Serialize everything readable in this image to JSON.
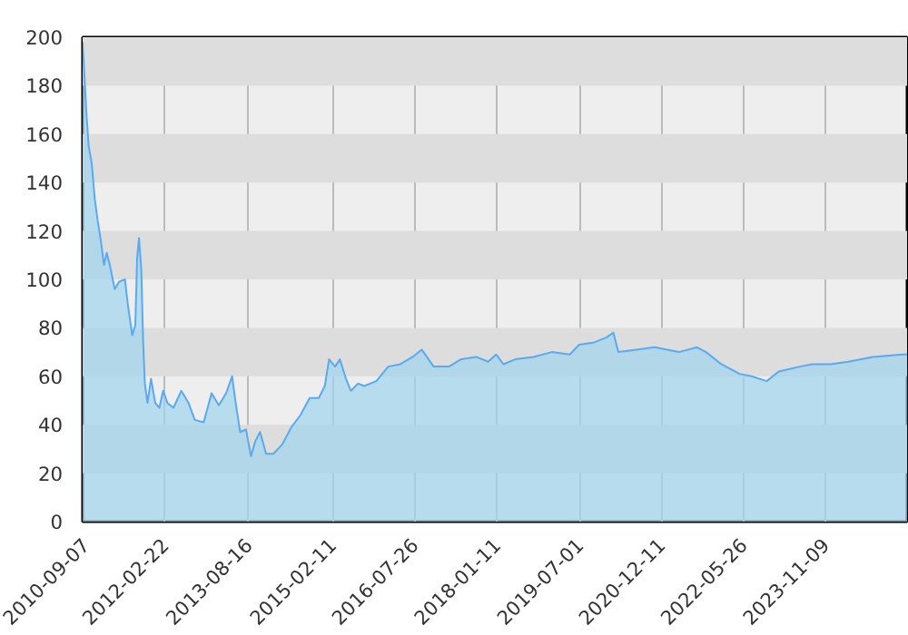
{
  "chart_data": {
    "type": "area",
    "x": [
      "2010-09-07",
      "2010-10-04",
      "2010-10-16",
      "2010-11-05",
      "2010-11-25",
      "2010-12-14",
      "2011-01-03",
      "2011-01-23",
      "2011-02-10",
      "2011-03-02",
      "2011-04-03",
      "2011-04-30",
      "2011-06-08",
      "2011-06-28",
      "2011-07-25",
      "2011-08-14",
      "2011-08-26",
      "2011-09-07",
      "2011-09-22",
      "2011-10-04",
      "2011-10-15",
      "2011-11-01",
      "2011-11-24",
      "2011-12-21",
      "2012-01-17",
      "2012-02-10",
      "2012-03-09",
      "2012-04-17",
      "2012-06-07",
      "2012-07-24",
      "2012-09-02",
      "2012-10-30",
      "2012-12-20",
      "2013-02-05",
      "2013-03-24",
      "2013-05-02",
      "2013-05-25",
      "2013-06-23",
      "2013-07-31",
      "2013-09-01",
      "2013-09-28",
      "2013-10-30",
      "2013-12-08",
      "2014-01-24",
      "2014-03-24",
      "2014-05-21",
      "2014-07-19",
      "2014-09-16",
      "2014-11-14",
      "2014-12-23",
      "2015-01-20",
      "2015-02-28",
      "2015-03-31",
      "2015-05-09",
      "2015-06-10",
      "2015-07-27",
      "2015-09-04",
      "2015-11-22",
      "2016-02-07",
      "2016-04-26",
      "2016-07-14",
      "2016-09-11",
      "2016-11-27",
      "2017-03-06",
      "2017-05-23",
      "2017-08-29",
      "2017-11-15",
      "2018-01-06",
      "2018-02-22",
      "2018-05-10",
      "2018-09-05",
      "2019-01-01",
      "2019-04-28",
      "2019-06-26",
      "2019-10-03",
      "2019-12-19",
      "2020-02-04",
      "2020-03-07",
      "2020-07-03",
      "2020-10-28",
      "2021-04-03",
      "2021-07-29",
      "2021-09-26",
      "2022-01-03",
      "2022-05-01",
      "2022-07-17",
      "2022-10-24",
      "2023-01-10",
      "2023-05-27",
      "2023-08-14",
      "2023-12-10",
      "2024-04-05",
      "2024-09-09",
      "2025-03-24",
      "2025-04-20"
    ],
    "series": [
      {
        "color": "#5aa9f2",
        "values": [
          198,
          166,
          155,
          148,
          133,
          124,
          116,
          106,
          111,
          106,
          96,
          99,
          100,
          89,
          77,
          81,
          109,
          117,
          104,
          74,
          57,
          49,
          59,
          49,
          47,
          54,
          49,
          47,
          54,
          49,
          42,
          41,
          53,
          48,
          53,
          60,
          49,
          37,
          38,
          27,
          33,
          37,
          28,
          28,
          32,
          39,
          44,
          51,
          51,
          56,
          67,
          64,
          67,
          59,
          54,
          57,
          56,
          58,
          64,
          65,
          68,
          71,
          64,
          64,
          67,
          68,
          66,
          69,
          65,
          67,
          68,
          70,
          69,
          73,
          74,
          76,
          78,
          70,
          71,
          72,
          70,
          72,
          70,
          65,
          61,
          60,
          58,
          62,
          64,
          65,
          65,
          66,
          68,
          69,
          69
        ]
      }
    ],
    "xlim": [
      "2010-09-07",
      "2025-04-20"
    ],
    "xticks": [
      "2010-09-07",
      "2012-02-22",
      "2013-08-16",
      "2015-02-11",
      "2016-07-26",
      "2018-01-11",
      "2019-07-01",
      "2020-12-11",
      "2022-05-26",
      "2023-11-09"
    ],
    "ylim": [
      0,
      200
    ],
    "yticks": [
      0,
      20,
      40,
      60,
      80,
      100,
      120,
      140,
      160,
      180,
      200
    ],
    "grid": true
  }
}
